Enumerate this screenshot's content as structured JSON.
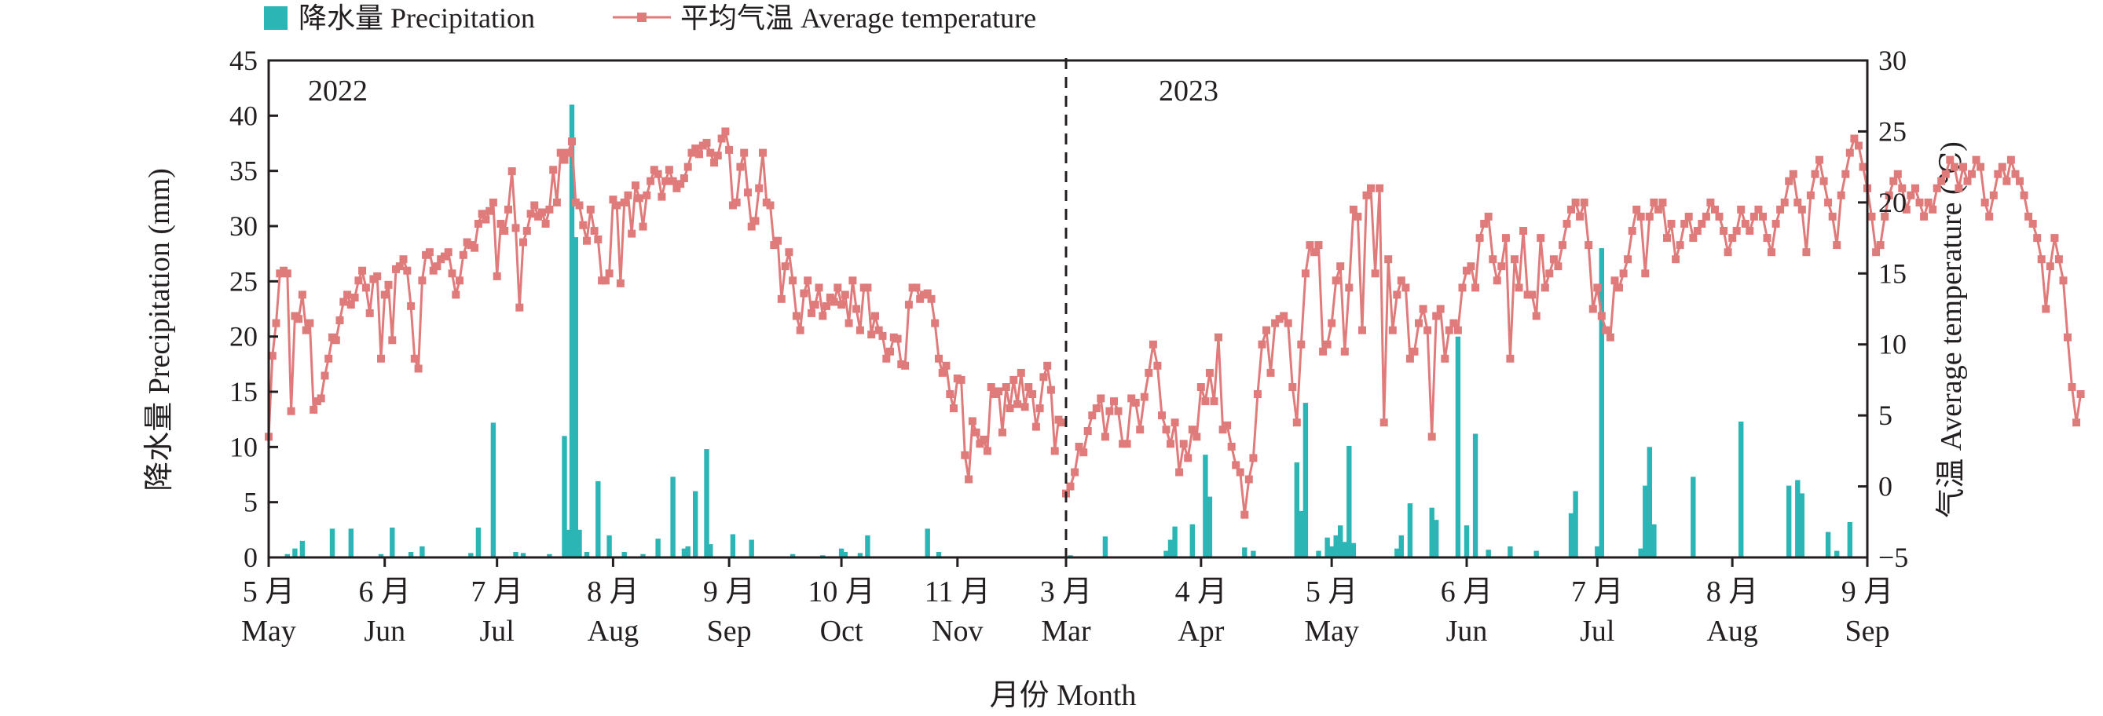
{
  "chart_data": {
    "type": "bar+line",
    "title": "",
    "legend": {
      "position": "top-left",
      "items": [
        {
          "label": "降水量 Precipitation",
          "type": "bar",
          "color": "#2bb5b5"
        },
        {
          "label": "平均气温 Average temperature",
          "type": "line",
          "color": "#e07b7b"
        }
      ]
    },
    "xlabel": "月份 Month",
    "ylabel_left": "降水量 Precipitation (mm)",
    "ylabel_right": "气温 Average temperature (℃)",
    "ylim_left": [
      0,
      45
    ],
    "ylim_right": [
      -5,
      30
    ],
    "yticks_left": [
      "0",
      "5",
      "10",
      "15",
      "20",
      "25",
      "30",
      "35",
      "40",
      "45"
    ],
    "yticks_right": [
      "−5",
      "0",
      "5",
      "10",
      "15",
      "20",
      "25",
      "30"
    ],
    "grid": false,
    "year_labels": [
      "2022",
      "2023"
    ],
    "month_ticks": [
      {
        "cn": "5 月",
        "en": "May"
      },
      {
        "cn": "6 月",
        "en": "Jun"
      },
      {
        "cn": "7 月",
        "en": "Jul"
      },
      {
        "cn": "8 月",
        "en": "Aug"
      },
      {
        "cn": "9 月",
        "en": "Sep"
      },
      {
        "cn": "10 月",
        "en": "Oct"
      },
      {
        "cn": "11 月",
        "en": "Nov"
      },
      {
        "cn": "3 月",
        "en": "Mar"
      },
      {
        "cn": "4 月",
        "en": "Apr"
      },
      {
        "cn": "5 月",
        "en": "May"
      },
      {
        "cn": "6 月",
        "en": "Jun"
      },
      {
        "cn": "7 月",
        "en": "Jul"
      },
      {
        "cn": "8 月",
        "en": "Aug"
      },
      {
        "cn": "9 月",
        "en": "Sep"
      }
    ],
    "series": [
      {
        "name": "降水量 Precipitation",
        "segments": [
          {
            "year": "2022",
            "start": "2022-05-01",
            "end": "2022-11-30",
            "bars": [
              [
                "2022-05-06",
                0.3
              ],
              [
                "2022-05-08",
                0.8
              ],
              [
                "2022-05-10",
                1.5
              ],
              [
                "2022-05-18",
                2.6
              ],
              [
                "2022-05-23",
                2.6
              ],
              [
                "2022-05-31",
                0.3
              ],
              [
                "2022-06-03",
                2.7
              ],
              [
                "2022-06-08",
                0.5
              ],
              [
                "2022-06-11",
                1.0
              ],
              [
                "2022-06-24",
                0.4
              ],
              [
                "2022-06-26",
                2.7
              ],
              [
                "2022-06-30",
                12.2
              ],
              [
                "2022-07-06",
                0.5
              ],
              [
                "2022-07-08",
                0.4
              ],
              [
                "2022-07-15",
                0.3
              ],
              [
                "2022-07-19",
                11.0
              ],
              [
                "2022-07-20",
                2.5
              ],
              [
                "2022-07-21",
                41.0
              ],
              [
                "2022-07-22",
                29.0
              ],
              [
                "2022-07-23",
                2.5
              ],
              [
                "2022-07-25",
                0.5
              ],
              [
                "2022-07-28",
                6.9
              ],
              [
                "2022-07-31",
                2.0
              ],
              [
                "2022-08-04",
                0.5
              ],
              [
                "2022-08-09",
                0.3
              ],
              [
                "2022-08-13",
                1.7
              ],
              [
                "2022-08-17",
                7.3
              ],
              [
                "2022-08-20",
                0.8
              ],
              [
                "2022-08-21",
                1.0
              ],
              [
                "2022-08-23",
                6.0
              ],
              [
                "2022-08-26",
                9.8
              ],
              [
                "2022-08-27",
                1.2
              ],
              [
                "2022-09-02",
                2.1
              ],
              [
                "2022-09-07",
                1.6
              ],
              [
                "2022-09-18",
                0.3
              ],
              [
                "2022-09-26",
                0.2
              ],
              [
                "2022-10-01",
                0.8
              ],
              [
                "2022-10-02",
                0.5
              ],
              [
                "2022-10-06",
                0.4
              ],
              [
                "2022-10-08",
                2.0
              ],
              [
                "2022-10-24",
                2.6
              ],
              [
                "2022-10-27",
                0.5
              ]
            ]
          },
          {
            "year": "2023",
            "start": "2023-03-01",
            "end": "2023-09-01",
            "bars": [
              [
                "2023-03-02",
                0.2
              ],
              [
                "2023-03-10",
                1.9
              ],
              [
                "2023-03-24",
                0.6
              ],
              [
                "2023-03-25",
                1.6
              ],
              [
                "2023-03-26",
                2.8
              ],
              [
                "2023-03-30",
                3.0
              ],
              [
                "2023-04-02",
                9.3
              ],
              [
                "2023-04-03",
                5.5
              ],
              [
                "2023-04-11",
                0.9
              ],
              [
                "2023-04-13",
                0.6
              ],
              [
                "2023-04-23",
                8.6
              ],
              [
                "2023-04-24",
                4.2
              ],
              [
                "2023-04-25",
                14.0
              ],
              [
                "2023-04-28",
                0.6
              ],
              [
                "2023-04-30",
                1.8
              ],
              [
                "2023-05-01",
                1.0
              ],
              [
                "2023-05-02",
                2.0
              ],
              [
                "2023-05-03",
                2.9
              ],
              [
                "2023-05-04",
                1.4
              ],
              [
                "2023-05-05",
                10.1
              ],
              [
                "2023-05-06",
                1.3
              ],
              [
                "2023-05-16",
                0.8
              ],
              [
                "2023-05-17",
                2.0
              ],
              [
                "2023-05-19",
                4.9
              ],
              [
                "2023-05-24",
                4.5
              ],
              [
                "2023-05-25",
                3.4
              ],
              [
                "2023-05-30",
                20.0
              ],
              [
                "2023-06-01",
                2.9
              ],
              [
                "2023-06-03",
                11.2
              ],
              [
                "2023-06-06",
                0.7
              ],
              [
                "2023-06-11",
                1.0
              ],
              [
                "2023-06-17",
                0.6
              ],
              [
                "2023-06-25",
                4.0
              ],
              [
                "2023-06-26",
                6.0
              ],
              [
                "2023-07-01",
                1.0
              ],
              [
                "2023-07-02",
                28.0
              ],
              [
                "2023-07-11",
                0.8
              ],
              [
                "2023-07-12",
                6.5
              ],
              [
                "2023-07-13",
                10.0
              ],
              [
                "2023-07-14",
                3.0
              ],
              [
                "2023-07-23",
                7.3
              ],
              [
                "2023-08-03",
                12.3
              ],
              [
                "2023-08-14",
                6.5
              ],
              [
                "2023-08-16",
                7.0
              ],
              [
                "2023-08-17",
                5.8
              ],
              [
                "2023-08-23",
                2.3
              ],
              [
                "2023-08-25",
                0.6
              ],
              [
                "2023-08-28",
                3.2
              ]
            ]
          }
        ]
      },
      {
        "name": "平均气温 Average temperature",
        "segments": [
          {
            "year": "2022",
            "start": "2022-05-01",
            "step_days": 1,
            "values": [
              3.5,
              9.2,
              11.5,
              15.0,
              15.2,
              15.0,
              5.3,
              12.0,
              11.8,
              13.5,
              11.0,
              11.5,
              5.4,
              6.0,
              6.2,
              7.8,
              9.0,
              10.5,
              10.3,
              11.7,
              13.0,
              13.5,
              12.8,
              13.3,
              14.5,
              15.2,
              14.0,
              12.2,
              14.6,
              14.8,
              9.0,
              13.5,
              14.2,
              10.3,
              15.3,
              15.5,
              16.0,
              15.2,
              12.7,
              9.0,
              8.3,
              14.5,
              16.3,
              16.5,
              15.2,
              15.5,
              16.0,
              16.2,
              16.5,
              15.0,
              13.5,
              14.5,
              16.3,
              17.2,
              17.0,
              16.8,
              18.5,
              19.2,
              18.8,
              19.4,
              20.0,
              14.8,
              18.5,
              18.0,
              19.5,
              22.2,
              18.2,
              12.6,
              17.2,
              18.0,
              19.2,
              19.8,
              19.0,
              19.3,
              18.5,
              19.5,
              22.3,
              20.0,
              23.5,
              23.0,
              23.5,
              24.3,
              20.0,
              19.8,
              18.4,
              17.3,
              19.5,
              18.0,
              17.4,
              14.5,
              14.5,
              15.0,
              20.2,
              19.8,
              14.3,
              20.0,
              20.5,
              17.8,
              21.2,
              20.3,
              18.3,
              20.5,
              21.5,
              22.3,
              22.0,
              20.4,
              21.5,
              22.3,
              21.5,
              21.0,
              21.3,
              21.7,
              22.5,
              23.5,
              23.8,
              23.4,
              24.0,
              24.2,
              23.5,
              22.8,
              23.3,
              24.5,
              25.0,
              23.7,
              19.8,
              20.0,
              22.5,
              23.5,
              20.7,
              18.3,
              18.7,
              21.0,
              23.5,
              20.0,
              19.8,
              17.0,
              17.3,
              13.2,
              15.5,
              16.5,
              14.5,
              12.0,
              11.0,
              13.6,
              14.5,
              12.2,
              12.8,
              14.0,
              12.0,
              12.7,
              13.3,
              13.0,
              14.0,
              12.8,
              13.5,
              11.5,
              14.5,
              12.5,
              11.0,
              14.0,
              14.0,
              10.7,
              12.0,
              11.0,
              10.6,
              9.0,
              9.5,
              10.5,
              10.4,
              8.6,
              8.5,
              12.8,
              14.0,
              14.0,
              13.2,
              13.5,
              13.6,
              13.2,
              11.5,
              9.0,
              8.0,
              8.5,
              6.5,
              5.5,
              7.6,
              7.5,
              2.2,
              0.5,
              4.6,
              3.8,
              3.0,
              3.3,
              2.5,
              7.0,
              6.5,
              6.7,
              3.8,
              7.0,
              5.5,
              7.5,
              5.8,
              8.0,
              5.6,
              7.0,
              6.5,
              4.2,
              5.5,
              7.7,
              8.5,
              6.8,
              2.5,
              4.7,
              4.5
            ]
          },
          {
            "year": "2023",
            "start": "2023-03-01",
            "step_days": 1,
            "values": [
              -0.5,
              0.0,
              1.0,
              2.8,
              2.4,
              3.9,
              5.0,
              5.5,
              6.2,
              3.5,
              5.3,
              6.0,
              5.3,
              3.0,
              3.0,
              6.2,
              5.9,
              4.0,
              6.3,
              8.0,
              10.0,
              8.5,
              5.0,
              4.0,
              3.0,
              4.5,
              1.0,
              3.0,
              2.0,
              4.0,
              3.5,
              7.0,
              6.0,
              8.0,
              6.0,
              10.5,
              4.0,
              4.3,
              2.8,
              1.5,
              1.0,
              -2.0,
              0.5,
              2.0,
              6.5,
              10.0,
              11.0,
              8.0,
              11.5,
              11.8,
              12.0,
              11.5,
              7.0,
              4.5,
              10.0,
              15.0,
              17.0,
              16.5,
              17.0,
              9.5,
              10.0,
              11.5,
              14.5,
              15.5,
              9.5,
              14.0,
              19.5,
              19.0,
              11.0,
              20.5,
              21.0,
              15.0,
              21.0,
              4.5,
              16.0,
              11.0,
              13.5,
              14.5,
              14.0,
              9.0,
              9.5,
              11.5,
              12.5,
              11.0,
              3.5,
              12.0,
              12.5,
              9.0,
              11.0,
              11.5,
              11.0,
              14.0,
              15.2,
              15.5,
              14.0,
              17.5,
              18.5,
              19.0,
              16.0,
              14.5,
              15.5,
              17.5,
              9.0,
              16.0,
              14.0,
              18.0,
              13.5,
              13.5,
              12.0,
              17.5,
              14.0,
              15.0,
              16.0,
              15.5,
              17.0,
              18.5,
              19.5,
              20.0,
              19.0,
              20.0,
              17.0,
              12.5,
              14.0,
              12.0,
              11.0,
              10.5,
              14.5,
              14.0,
              15.0,
              16.0,
              18.0,
              19.5,
              19.0,
              15.0,
              19.0,
              20.0,
              19.5,
              20.0,
              17.5,
              18.5,
              16.0,
              17.0,
              18.5,
              19.0,
              17.5,
              18.0,
              18.5,
              19.0,
              20.0,
              19.5,
              19.0,
              18.0,
              16.5,
              17.5,
              18.0,
              19.5,
              18.5,
              18.0,
              19.0,
              19.5,
              19.0,
              17.5,
              16.5,
              18.5,
              19.5,
              20.0,
              21.5,
              22.0,
              20.0,
              19.5,
              16.5,
              20.5,
              22.0,
              23.0,
              21.5,
              20.0,
              19.0,
              17.0,
              20.5,
              22.0,
              23.5,
              24.5,
              24.0,
              22.5,
              21.0,
              19.0,
              16.5,
              17.0,
              19.0,
              20.5,
              21.5,
              22.0,
              21.0,
              19.5,
              20.5,
              21.0,
              20.0,
              19.0,
              20.0,
              19.5,
              21.0,
              21.5,
              22.0,
              23.0,
              22.5,
              21.0,
              22.5,
              21.5,
              22.0,
              23.0,
              22.5,
              20.0,
              19.0,
              20.5,
              22.0,
              22.5,
              21.5,
              23.0,
              22.0,
              21.5,
              20.5,
              19.0,
              18.5,
              17.5,
              16.0,
              12.5,
              15.5,
              17.5,
              16.0,
              14.5,
              10.5,
              7.0,
              4.5,
              6.5
            ]
          }
        ]
      }
    ]
  }
}
